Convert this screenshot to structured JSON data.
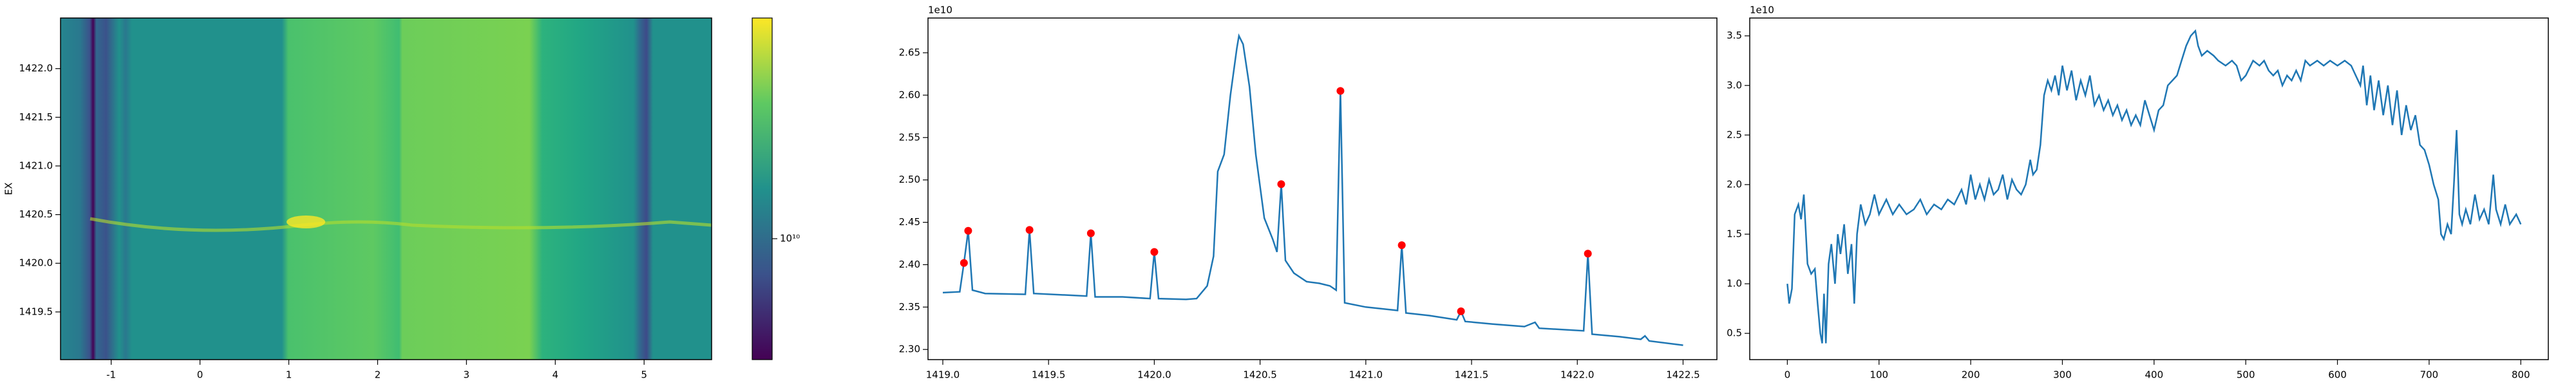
{
  "chart_data": [
    {
      "type": "heatmap",
      "ylabel": "EX",
      "xlim": [
        -1.57,
        5.76
      ],
      "ylim": [
        1419.01,
        1422.52
      ],
      "xticks": [
        -1,
        0,
        1,
        2,
        3,
        4,
        5
      ],
      "yticks": [
        1419.5,
        {
          "value": 1420.0,
          "label": "1420.0"
        },
        1420.5,
        {
          "value": 1421.0,
          "label": "1421.0"
        },
        1421.5,
        {
          "value": 1422.0,
          "label": "1422.0"
        }
      ],
      "colorbar": {
        "log": true,
        "clim": [
          3200000000.0,
          80000000000.0
        ],
        "ticks": [
          {
            "value": 10000000000.0,
            "label": "10¹⁰"
          }
        ]
      }
    },
    {
      "type": "line",
      "offset_text": "1e10",
      "color": "#1f77b4",
      "xlim": [
        1418.93,
        1422.66
      ],
      "ylim": [
        2.288,
        2.691
      ],
      "xticks": [
        {
          "value": 1419.0,
          "label": "1419.0"
        },
        1419.5,
        {
          "value": 1420.0,
          "label": "1420.0"
        },
        1420.5,
        {
          "value": 1421.0,
          "label": "1421.0"
        },
        1421.5,
        {
          "value": 1422.0,
          "label": "1422.0"
        },
        1422.5
      ],
      "yticks": [
        {
          "value": 2.3,
          "label": "2.30"
        },
        2.35,
        {
          "value": 2.4,
          "label": "2.40"
        },
        2.45,
        {
          "value": 2.5,
          "label": "2.50"
        },
        2.55,
        {
          "value": 2.6,
          "label": "2.60"
        },
        2.65
      ],
      "x": [
        1419.0,
        1419.08,
        1419.1,
        1419.12,
        1419.14,
        1419.2,
        1419.39,
        1419.41,
        1419.43,
        1419.6,
        1419.68,
        1419.7,
        1419.72,
        1419.85,
        1419.98,
        1420.0,
        1420.02,
        1420.15,
        1420.2,
        1420.25,
        1420.28,
        1420.3,
        1420.33,
        1420.36,
        1420.39,
        1420.4,
        1420.42,
        1420.45,
        1420.48,
        1420.52,
        1420.56,
        1420.58,
        1420.6,
        1420.62,
        1420.66,
        1420.72,
        1420.78,
        1420.83,
        1420.86,
        1420.88,
        1420.9,
        1421.0,
        1421.15,
        1421.17,
        1421.19,
        1421.3,
        1421.43,
        1421.45,
        1421.47,
        1421.6,
        1421.75,
        1421.8,
        1421.82,
        1422.03,
        1422.05,
        1422.07,
        1422.2,
        1422.3,
        1422.32,
        1422.34,
        1422.5
      ],
      "values": [
        2.367,
        2.368,
        2.402,
        2.44,
        2.37,
        2.366,
        2.365,
        2.441,
        2.366,
        2.364,
        2.363,
        2.437,
        2.362,
        2.362,
        2.36,
        2.415,
        2.36,
        2.359,
        2.36,
        2.375,
        2.41,
        2.51,
        2.53,
        2.6,
        2.655,
        2.67,
        2.66,
        2.61,
        2.53,
        2.455,
        2.43,
        2.415,
        2.495,
        2.405,
        2.39,
        2.38,
        2.378,
        2.375,
        2.37,
        2.605,
        2.355,
        2.35,
        2.346,
        2.423,
        2.343,
        2.34,
        2.335,
        2.345,
        2.333,
        2.33,
        2.327,
        2.332,
        2.325,
        2.322,
        2.413,
        2.318,
        2.315,
        2.312,
        2.316,
        2.31,
        2.305
      ],
      "markers": {
        "color": "red",
        "x": [
          1419.1,
          1419.12,
          1419.41,
          1419.7,
          1420.0,
          1420.6,
          1420.88,
          1421.17,
          1421.45,
          1422.05
        ],
        "values": [
          2.402,
          2.44,
          2.441,
          2.437,
          2.415,
          2.495,
          2.605,
          2.423,
          2.345,
          2.413
        ]
      }
    },
    {
      "type": "line",
      "offset_text": "1e10",
      "color": "#1f77b4",
      "xlim": [
        -41,
        830
      ],
      "ylim": [
        0.235,
        3.68
      ],
      "xticks": [
        0,
        100,
        200,
        300,
        400,
        500,
        600,
        700,
        800
      ],
      "yticks": [
        0.5,
        {
          "value": 1.0,
          "label": "1.0"
        },
        1.5,
        {
          "value": 2.0,
          "label": "2.0"
        },
        2.5,
        {
          "value": 3.0,
          "label": "3.0"
        },
        3.5
      ],
      "x": [
        0,
        2,
        5,
        8,
        12,
        15,
        18,
        22,
        26,
        30,
        33,
        36,
        38,
        40,
        42,
        45,
        48,
        52,
        55,
        58,
        62,
        66,
        70,
        73,
        76,
        80,
        85,
        90,
        95,
        100,
        108,
        115,
        122,
        130,
        138,
        145,
        152,
        160,
        168,
        175,
        182,
        190,
        195,
        200,
        205,
        210,
        215,
        220,
        225,
        230,
        235,
        240,
        245,
        250,
        255,
        260,
        265,
        268,
        272,
        276,
        280,
        284,
        288,
        292,
        296,
        300,
        305,
        310,
        315,
        320,
        325,
        330,
        335,
        340,
        345,
        350,
        355,
        360,
        365,
        370,
        375,
        380,
        385,
        390,
        395,
        400,
        405,
        410,
        415,
        420,
        425,
        430,
        435,
        440,
        445,
        448,
        452,
        458,
        465,
        470,
        478,
        485,
        490,
        495,
        500,
        508,
        515,
        520,
        525,
        530,
        535,
        540,
        545,
        550,
        555,
        560,
        565,
        570,
        578,
        585,
        592,
        600,
        608,
        615,
        620,
        625,
        628,
        632,
        636,
        640,
        645,
        650,
        655,
        660,
        665,
        670,
        675,
        680,
        685,
        690,
        695,
        700,
        705,
        710,
        713,
        716,
        720,
        724,
        727,
        730,
        733,
        736,
        740,
        745,
        750,
        755,
        760,
        765,
        770,
        773,
        778,
        783,
        788,
        795,
        800
      ],
      "values": [
        1.0,
        0.8,
        0.95,
        1.7,
        1.8,
        1.65,
        1.9,
        1.2,
        1.1,
        1.15,
        0.8,
        0.5,
        0.4,
        0.9,
        0.4,
        1.2,
        1.4,
        1.0,
        1.5,
        1.3,
        1.6,
        1.1,
        1.4,
        0.8,
        1.5,
        1.8,
        1.6,
        1.7,
        1.9,
        1.7,
        1.85,
        1.7,
        1.8,
        1.7,
        1.75,
        1.85,
        1.7,
        1.8,
        1.75,
        1.85,
        1.8,
        1.95,
        1.8,
        2.1,
        1.85,
        2.0,
        1.85,
        2.05,
        1.9,
        1.95,
        2.1,
        1.85,
        2.05,
        1.95,
        1.9,
        2.0,
        2.25,
        2.1,
        2.15,
        2.4,
        2.9,
        3.05,
        2.95,
        3.1,
        2.9,
        3.2,
        2.95,
        3.15,
        2.85,
        3.05,
        2.9,
        3.1,
        2.8,
        2.9,
        2.75,
        2.85,
        2.7,
        2.8,
        2.65,
        2.75,
        2.6,
        2.7,
        2.6,
        2.85,
        2.7,
        2.55,
        2.75,
        2.8,
        3.0,
        3.05,
        3.1,
        3.25,
        3.4,
        3.5,
        3.55,
        3.4,
        3.3,
        3.35,
        3.3,
        3.25,
        3.2,
        3.25,
        3.2,
        3.05,
        3.1,
        3.25,
        3.2,
        3.25,
        3.15,
        3.1,
        3.15,
        3.0,
        3.1,
        3.05,
        3.15,
        3.05,
        3.25,
        3.2,
        3.25,
        3.2,
        3.25,
        3.2,
        3.25,
        3.2,
        3.1,
        3.0,
        3.2,
        2.8,
        3.1,
        2.75,
        3.05,
        2.7,
        3.0,
        2.6,
        2.95,
        2.5,
        2.8,
        2.55,
        2.7,
        2.4,
        2.35,
        2.2,
        2.0,
        1.85,
        1.5,
        1.45,
        1.6,
        1.5,
        2.0,
        2.55,
        1.7,
        1.6,
        1.75,
        1.6,
        1.9,
        1.65,
        1.75,
        1.6,
        2.1,
        1.75,
        1.6,
        1.8,
        1.6,
        1.7,
        1.6
      ]
    }
  ]
}
